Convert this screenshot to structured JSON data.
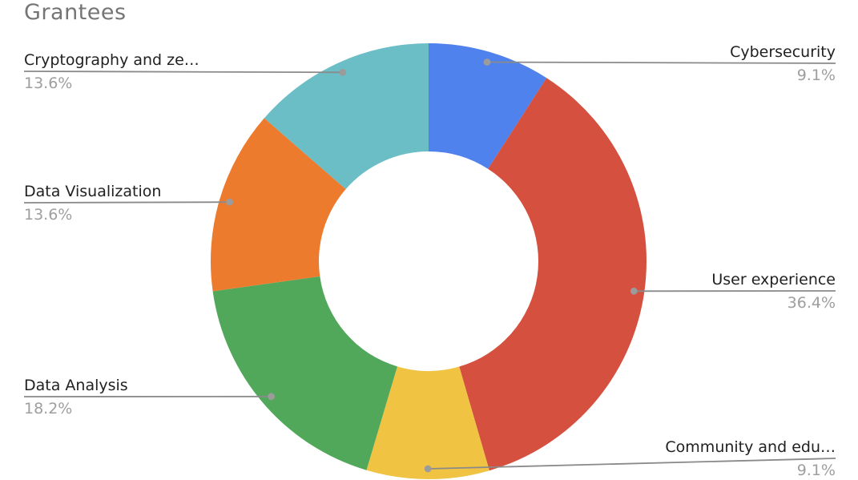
{
  "chart_data": {
    "type": "pie",
    "subtype": "donut",
    "title": "Grantees",
    "hole_ratio": 0.5,
    "legend_position": "outside-labels-with-leader-lines",
    "total_percent": 100,
    "categories": [
      "Cybersecurity",
      "User experience",
      "Community and edu…",
      "Data Analysis",
      "Data Visualization",
      "Cryptography and ze…"
    ],
    "values": [
      9.1,
      36.4,
      9.1,
      18.2,
      13.6,
      13.6
    ],
    "slices": [
      {
        "label": "Cybersecurity",
        "pct_label": "9.1%",
        "value": 9.1,
        "color": "#4F82EC"
      },
      {
        "label": "User experience",
        "pct_label": "36.4%",
        "value": 36.4,
        "color": "#D5503E"
      },
      {
        "label": "Community and edu…",
        "pct_label": "9.1%",
        "value": 9.1,
        "color": "#F0C342"
      },
      {
        "label": "Data Analysis",
        "pct_label": "18.2%",
        "value": 18.2,
        "color": "#52A85A"
      },
      {
        "label": "Data Visualization",
        "pct_label": "13.6%",
        "value": 13.6,
        "color": "#ED7B2E"
      },
      {
        "label": "Cryptography and ze…",
        "pct_label": "13.6%",
        "value": 13.6,
        "color": "#6BBEC6"
      }
    ],
    "style_colors": {
      "title_text": "#757575",
      "label_text": "#212121",
      "percent_text": "#9e9e9e",
      "leader_line": "#8a8a8a",
      "leader_dot": "#9b9b9b",
      "background": "#ffffff"
    }
  }
}
